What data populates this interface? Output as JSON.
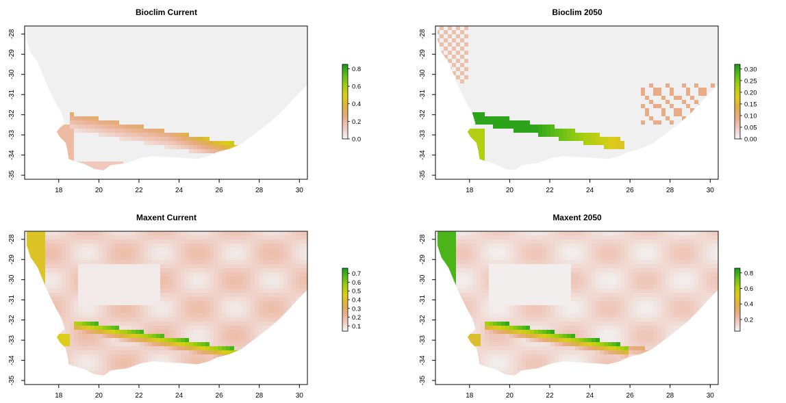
{
  "panels": [
    {
      "title": "Bioclim Current",
      "model": "bioclim",
      "period": "current",
      "x_ticks": [
        "18",
        "20",
        "22",
        "24",
        "26",
        "28",
        "30"
      ],
      "y_ticks": [
        "-28",
        "-29",
        "-30",
        "-31",
        "-32",
        "-33",
        "-34",
        "-35"
      ],
      "legend_ticks": [
        "0.8",
        "0.6",
        "0.4",
        "0.2",
        "0.0"
      ],
      "legend_range": [
        0,
        0.85
      ],
      "legend_tick_values": [
        0.8,
        0.6,
        0.4,
        0.2,
        0.0
      ]
    },
    {
      "title": "Bioclim 2050",
      "model": "bioclim",
      "period": "2050",
      "x_ticks": [
        "18",
        "20",
        "22",
        "24",
        "26",
        "28",
        "30"
      ],
      "y_ticks": [
        "-28",
        "-29",
        "-30",
        "-31",
        "-32",
        "-33",
        "-34",
        "-35"
      ],
      "legend_ticks": [
        "0.30",
        "0.25",
        "0.20",
        "0.15",
        "0.10",
        "0.05",
        "0.00"
      ],
      "legend_range": [
        0,
        0.32
      ],
      "legend_tick_values": [
        0.3,
        0.25,
        0.2,
        0.15,
        0.1,
        0.05,
        0.0
      ]
    },
    {
      "title": "Maxent Current",
      "model": "maxent",
      "period": "current",
      "x_ticks": [
        "18",
        "20",
        "22",
        "24",
        "26",
        "28",
        "30"
      ],
      "y_ticks": [
        "-28",
        "-29",
        "-30",
        "-31",
        "-32",
        "-33",
        "-34",
        "-35"
      ],
      "legend_ticks": [
        "0.7",
        "0.6",
        "0.5",
        "0.4",
        "0.3",
        "0.2",
        "0.1"
      ],
      "legend_range": [
        0.04,
        0.76
      ],
      "legend_tick_values": [
        0.7,
        0.6,
        0.5,
        0.4,
        0.3,
        0.2,
        0.1
      ]
    },
    {
      "title": "Maxent 2050",
      "model": "maxent",
      "period": "2050",
      "x_ticks": [
        "18",
        "20",
        "22",
        "24",
        "26",
        "28",
        "30"
      ],
      "y_ticks": [
        "-28",
        "-29",
        "-30",
        "-31",
        "-32",
        "-33",
        "-34",
        "-35"
      ],
      "legend_ticks": [
        "0.8",
        "0.6",
        "0.4",
        "0.2"
      ],
      "legend_range": [
        0.05,
        0.86
      ],
      "legend_tick_values": [
        0.8,
        0.6,
        0.4,
        0.2
      ]
    }
  ],
  "x_range": [
    16.3,
    30.4
  ],
  "y_range": [
    -35.2,
    -27.6
  ],
  "colors": {
    "na_fill": "#f0f0f0",
    "ramp": [
      "#f2f2f2",
      "#efc9bd",
      "#e8ab84",
      "#ddb140",
      "#dccd1a",
      "#a8cf10",
      "#5fbe18",
      "#1f9c1c"
    ]
  }
}
